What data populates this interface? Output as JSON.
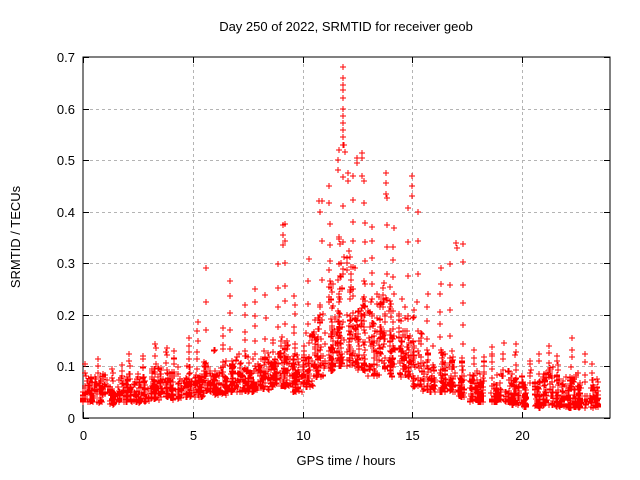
{
  "colors": {
    "marker": "#ff0000",
    "grid": "#b4b4b4",
    "frame": "#000000",
    "background": "#ffffff"
  },
  "chart_data": {
    "type": "scatter",
    "title": "Day 250 of 2022, SRMTID for receiver geob",
    "xlabel": "GPS time / hours",
    "ylabel": "SRMTID / TECUs",
    "xlim": [
      0,
      24
    ],
    "ylim": [
      0,
      0.7
    ],
    "xticks": [
      0,
      5,
      10,
      15,
      20
    ],
    "yticks": [
      0,
      0.1,
      0.2,
      0.3,
      0.4,
      0.5,
      0.6,
      0.7
    ],
    "grid": true,
    "legend": "none",
    "marker": {
      "shape": "plus",
      "size": 7,
      "color": "#ff0000"
    },
    "series": [
      {
        "name": "SRMTID",
        "representation": "envelope-bins",
        "bins_format": [
          "t_start",
          "t_end",
          "n_points",
          "band_min",
          "band_max",
          "spike_max"
        ],
        "bins": [
          [
            0.0,
            0.5,
            55,
            0.03,
            0.085,
            0.105
          ],
          [
            0.5,
            1.0,
            55,
            0.03,
            0.095,
            0.115
          ],
          [
            1.0,
            1.5,
            50,
            0.025,
            0.08,
            0.1
          ],
          [
            1.5,
            2.0,
            50,
            0.03,
            0.085,
            0.105
          ],
          [
            2.0,
            2.5,
            55,
            0.03,
            0.095,
            0.125
          ],
          [
            2.5,
            3.0,
            55,
            0.03,
            0.1,
            0.12
          ],
          [
            3.0,
            3.5,
            55,
            0.035,
            0.11,
            0.145
          ],
          [
            3.5,
            4.0,
            55,
            0.04,
            0.115,
            0.14
          ],
          [
            4.0,
            4.5,
            55,
            0.035,
            0.11,
            0.13
          ],
          [
            4.5,
            5.0,
            55,
            0.04,
            0.115,
            0.155
          ],
          [
            5.0,
            5.5,
            55,
            0.04,
            0.125,
            0.19
          ],
          [
            5.5,
            6.0,
            55,
            0.05,
            0.14,
            0.29
          ],
          [
            6.0,
            6.5,
            55,
            0.045,
            0.13,
            0.175
          ],
          [
            6.5,
            7.0,
            55,
            0.05,
            0.135,
            0.27
          ],
          [
            7.0,
            7.5,
            55,
            0.05,
            0.135,
            0.22
          ],
          [
            7.5,
            8.0,
            55,
            0.05,
            0.14,
            0.25
          ],
          [
            8.0,
            8.5,
            60,
            0.055,
            0.15,
            0.24
          ],
          [
            8.5,
            9.0,
            60,
            0.06,
            0.17,
            0.3
          ],
          [
            9.0,
            9.5,
            60,
            0.06,
            0.19,
            0.38
          ],
          [
            9.5,
            10.0,
            60,
            0.05,
            0.16,
            0.24
          ],
          [
            10.0,
            10.5,
            60,
            0.06,
            0.19,
            0.31
          ],
          [
            10.5,
            11.0,
            65,
            0.08,
            0.25,
            0.42
          ],
          [
            11.0,
            11.5,
            70,
            0.09,
            0.31,
            0.45
          ],
          [
            11.5,
            12.0,
            75,
            0.1,
            0.38,
            0.53
          ],
          [
            12.0,
            12.5,
            70,
            0.1,
            0.34,
            0.47
          ],
          [
            12.5,
            13.0,
            65,
            0.09,
            0.3,
            0.46
          ],
          [
            13.0,
            13.5,
            60,
            0.08,
            0.27,
            0.37
          ],
          [
            13.5,
            14.0,
            65,
            0.09,
            0.3,
            0.43
          ],
          [
            14.0,
            14.5,
            60,
            0.08,
            0.27,
            0.37
          ],
          [
            14.5,
            15.0,
            60,
            0.08,
            0.27,
            0.41
          ],
          [
            15.0,
            15.5,
            55,
            0.06,
            0.22,
            0.4
          ],
          [
            15.5,
            16.0,
            50,
            0.05,
            0.17,
            0.24
          ],
          [
            16.0,
            16.5,
            50,
            0.05,
            0.17,
            0.29
          ],
          [
            16.5,
            17.0,
            50,
            0.05,
            0.15,
            0.3
          ],
          [
            17.0,
            17.5,
            50,
            0.04,
            0.13,
            0.34
          ],
          [
            17.5,
            18.0,
            45,
            0.03,
            0.11,
            0.135
          ],
          [
            18.0,
            18.5,
            45,
            0.03,
            0.1,
            0.12
          ],
          [
            18.5,
            19.0,
            50,
            0.03,
            0.105,
            0.14
          ],
          [
            19.0,
            19.5,
            50,
            0.03,
            0.11,
            0.145
          ],
          [
            19.5,
            20.0,
            50,
            0.025,
            0.1,
            0.145
          ],
          [
            20.0,
            20.5,
            50,
            0.02,
            0.09,
            0.115
          ],
          [
            20.5,
            21.0,
            55,
            0.02,
            0.095,
            0.125
          ],
          [
            21.0,
            21.5,
            55,
            0.025,
            0.105,
            0.14
          ],
          [
            21.5,
            22.0,
            55,
            0.02,
            0.09,
            0.12
          ],
          [
            22.0,
            22.5,
            60,
            0.02,
            0.1,
            0.155
          ],
          [
            22.5,
            23.0,
            60,
            0.02,
            0.09,
            0.125
          ],
          [
            23.0,
            23.5,
            55,
            0.02,
            0.08,
            0.105
          ]
        ],
        "peak_columns_format": [
          "hour",
          "values"
        ],
        "peak_columns": [
          [
            11.84,
            [
              0.68,
              0.659,
              0.645,
              0.636,
              0.62,
              0.6,
              0.585,
              0.572,
              0.558,
              0.545
            ]
          ],
          [
            11.9,
            [
              0.53,
              0.515
            ]
          ],
          [
            11.62,
            [
              0.52,
              0.5,
              0.48
            ]
          ],
          [
            12.05,
            [
              0.475,
              0.46
            ]
          ],
          [
            12.48,
            [
              0.505,
              0.495
            ]
          ],
          [
            12.7,
            [
              0.513,
              0.505,
              0.47
            ]
          ],
          [
            13.82,
            [
              0.475,
              0.455,
              0.435
            ]
          ],
          [
            14.98,
            [
              0.47,
              0.45,
              0.43
            ]
          ],
          [
            9.1,
            [
              0.375,
              0.355,
              0.335
            ]
          ],
          [
            10.78,
            [
              0.42,
              0.4
            ]
          ],
          [
            17.02,
            [
              0.34,
              0.33
            ]
          ]
        ]
      }
    ]
  }
}
